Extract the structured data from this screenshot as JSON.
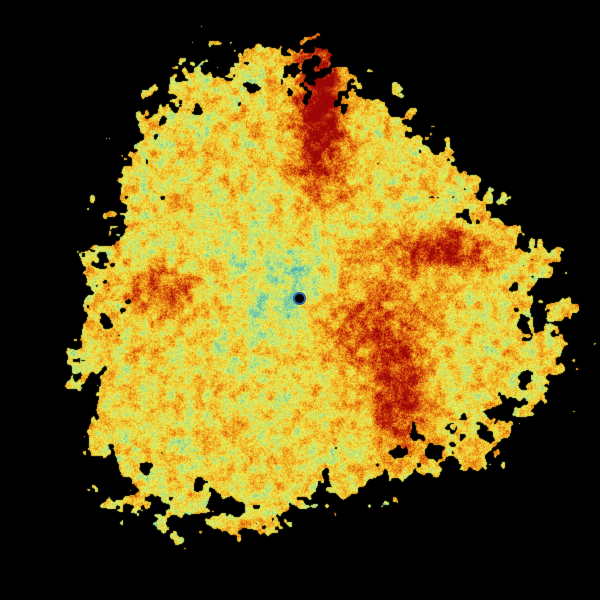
{
  "image": {
    "kind": "weather radar reflectivity sweep",
    "background": "#000000",
    "colormap": [
      "#1d5f9e",
      "#2f8fb5",
      "#5cc0b0",
      "#9fdc8c",
      "#e9f25e",
      "#f5c628",
      "#ea8a14",
      "#cf3c0c",
      "#9c0606"
    ]
  }
}
